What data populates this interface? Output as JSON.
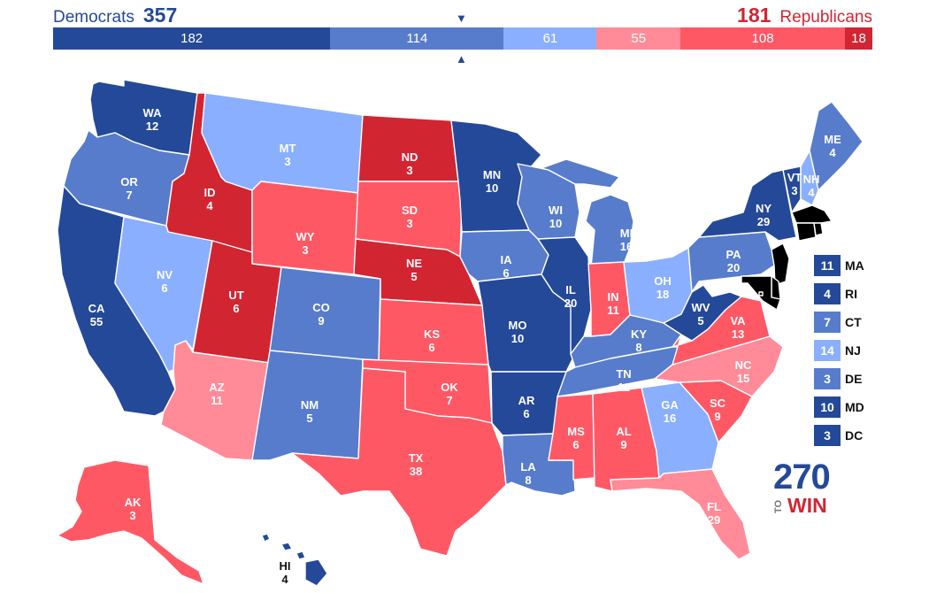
{
  "header": {
    "dem_label": "Democrats",
    "dem_total": "357",
    "rep_total": "181",
    "rep_label": "Republicans",
    "marker_top": "▼",
    "marker_bottom": "▲"
  },
  "colors": {
    "safe_d": "#244999",
    "likely_d": "#577ccc",
    "lean_d": "#8aafff",
    "lean_r": "#ff8b98",
    "likely_r": "#ff5865",
    "safe_r": "#d22532"
  },
  "summary_bar": [
    {
      "value": "182",
      "rating": "safe_d"
    },
    {
      "value": "114",
      "rating": "likely_d"
    },
    {
      "value": "61",
      "rating": "lean_d"
    },
    {
      "value": "55",
      "rating": "lean_r"
    },
    {
      "value": "108",
      "rating": "likely_r"
    },
    {
      "value": "18",
      "rating": "safe_r"
    }
  ],
  "states": {
    "WA": {
      "name": "WA",
      "ev": "12",
      "rating": "safe_d"
    },
    "OR": {
      "name": "OR",
      "ev": "7",
      "rating": "likely_d"
    },
    "CA": {
      "name": "CA",
      "ev": "55",
      "rating": "safe_d"
    },
    "ID": {
      "name": "ID",
      "ev": "4",
      "rating": "safe_r"
    },
    "NV": {
      "name": "NV",
      "ev": "6",
      "rating": "lean_d"
    },
    "MT": {
      "name": "MT",
      "ev": "3",
      "rating": "lean_d"
    },
    "WY": {
      "name": "WY",
      "ev": "3",
      "rating": "likely_r"
    },
    "UT": {
      "name": "UT",
      "ev": "6",
      "rating": "safe_r"
    },
    "AZ": {
      "name": "AZ",
      "ev": "11",
      "rating": "lean_r"
    },
    "CO": {
      "name": "CO",
      "ev": "9",
      "rating": "likely_d"
    },
    "NM": {
      "name": "NM",
      "ev": "5",
      "rating": "likely_d"
    },
    "ND": {
      "name": "ND",
      "ev": "3",
      "rating": "safe_r"
    },
    "SD": {
      "name": "SD",
      "ev": "3",
      "rating": "likely_r"
    },
    "NE": {
      "name": "NE",
      "ev": "5",
      "rating": "safe_r"
    },
    "KS": {
      "name": "KS",
      "ev": "6",
      "rating": "likely_r"
    },
    "OK": {
      "name": "OK",
      "ev": "7",
      "rating": "likely_r"
    },
    "TX": {
      "name": "TX",
      "ev": "38",
      "rating": "likely_r"
    },
    "MN": {
      "name": "MN",
      "ev": "10",
      "rating": "safe_d"
    },
    "IA": {
      "name": "IA",
      "ev": "6",
      "rating": "likely_d"
    },
    "MO": {
      "name": "MO",
      "ev": "10",
      "rating": "safe_d"
    },
    "AR": {
      "name": "AR",
      "ev": "6",
      "rating": "safe_d"
    },
    "LA": {
      "name": "LA",
      "ev": "8",
      "rating": "likely_d"
    },
    "WI": {
      "name": "WI",
      "ev": "10",
      "rating": "likely_d"
    },
    "IL": {
      "name": "IL",
      "ev": "20",
      "rating": "safe_d"
    },
    "MI": {
      "name": "MI",
      "ev": "16",
      "rating": "likely_d"
    },
    "IN": {
      "name": "IN",
      "ev": "11",
      "rating": "likely_r"
    },
    "OH": {
      "name": "OH",
      "ev": "18",
      "rating": "lean_d"
    },
    "KY": {
      "name": "KY",
      "ev": "8",
      "rating": "likely_d"
    },
    "TN": {
      "name": "TN",
      "ev": "11",
      "rating": "likely_d"
    },
    "MS": {
      "name": "MS",
      "ev": "6",
      "rating": "likely_r"
    },
    "AL": {
      "name": "AL",
      "ev": "9",
      "rating": "likely_r"
    },
    "GA": {
      "name": "GA",
      "ev": "16",
      "rating": "lean_d"
    },
    "FL": {
      "name": "FL",
      "ev": "29",
      "rating": "lean_r"
    },
    "SC": {
      "name": "SC",
      "ev": "9",
      "rating": "likely_r"
    },
    "NC": {
      "name": "NC",
      "ev": "15",
      "rating": "lean_r"
    },
    "VA": {
      "name": "VA",
      "ev": "13",
      "rating": "likely_r"
    },
    "WV": {
      "name": "WV",
      "ev": "5",
      "rating": "safe_d"
    },
    "PA": {
      "name": "PA",
      "ev": "20",
      "rating": "likely_d"
    },
    "NY": {
      "name": "NY",
      "ev": "29",
      "rating": "safe_d"
    },
    "VT": {
      "name": "VT",
      "ev": "3",
      "rating": "safe_d"
    },
    "NH": {
      "name": "NH",
      "ev": "4",
      "rating": "lean_d"
    },
    "ME": {
      "name": "ME",
      "ev": "4",
      "rating": "likely_d"
    },
    "AK": {
      "name": "AK",
      "ev": "3",
      "rating": "likely_r"
    },
    "HI": {
      "name": "HI",
      "ev": "4",
      "rating": "safe_d"
    }
  },
  "small_states": [
    {
      "name": "MA",
      "ev": "11",
      "rating": "safe_d"
    },
    {
      "name": "RI",
      "ev": "4",
      "rating": "safe_d"
    },
    {
      "name": "CT",
      "ev": "7",
      "rating": "likely_d"
    },
    {
      "name": "NJ",
      "ev": "14",
      "rating": "lean_d"
    },
    {
      "name": "DE",
      "ev": "3",
      "rating": "likely_d"
    },
    {
      "name": "MD",
      "ev": "10",
      "rating": "safe_d"
    },
    {
      "name": "DC",
      "ev": "3",
      "rating": "safe_d"
    }
  ],
  "logo": {
    "number": "270",
    "to": "TO",
    "win": "WIN"
  }
}
